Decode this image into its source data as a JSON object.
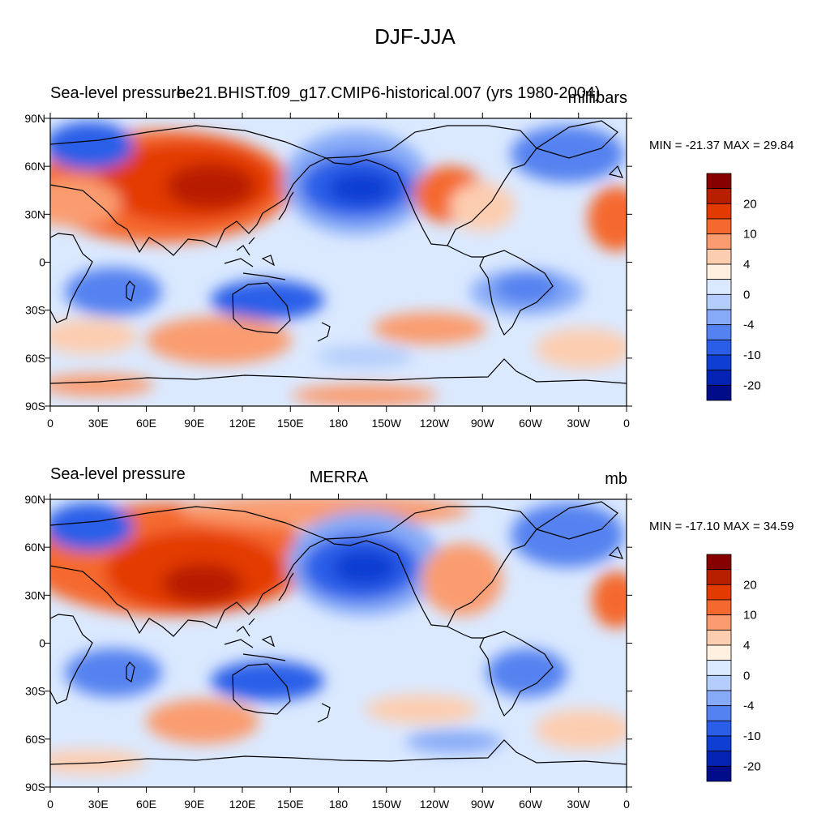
{
  "title": "DJF-JJA",
  "colors": {
    "frame": "#000000",
    "coast": "#000000"
  },
  "x_ticks": [
    "0",
    "30E",
    "60E",
    "90E",
    "120E",
    "150E",
    "180",
    "150W",
    "120W",
    "90W",
    "60W",
    "30W",
    "0"
  ],
  "y_ticks": [
    "90N",
    "60N",
    "30N",
    "0",
    "30S",
    "60S",
    "90S"
  ],
  "colorbar": {
    "labels": [
      "20",
      "10",
      "4",
      "0",
      "-4",
      "-10",
      "-20"
    ],
    "colors": [
      "#860000",
      "#b81e00",
      "#e33a00",
      "#f5692e",
      "#fa9c70",
      "#fdcdb0",
      "#fff0e0",
      "#dbe9ff",
      "#b4cdfa",
      "#86aaf7",
      "#5482f0",
      "#2b5ee8",
      "#0f3ed2",
      "#0323b5",
      "#000c8a"
    ]
  },
  "panels": [
    {
      "left_title": "Sea-level pressure",
      "center_title": "be21.BHIST.f09_g17.CMIP6-historical.007 (yrs 1980-2004)",
      "units": "millibars",
      "min_max": "MIN = -21.37 MAX =  29.84"
    },
    {
      "left_title": "Sea-level pressure",
      "center_title": "MERRA",
      "units": "mb",
      "min_max": "MIN = -17.10 MAX =  34.59"
    }
  ]
}
